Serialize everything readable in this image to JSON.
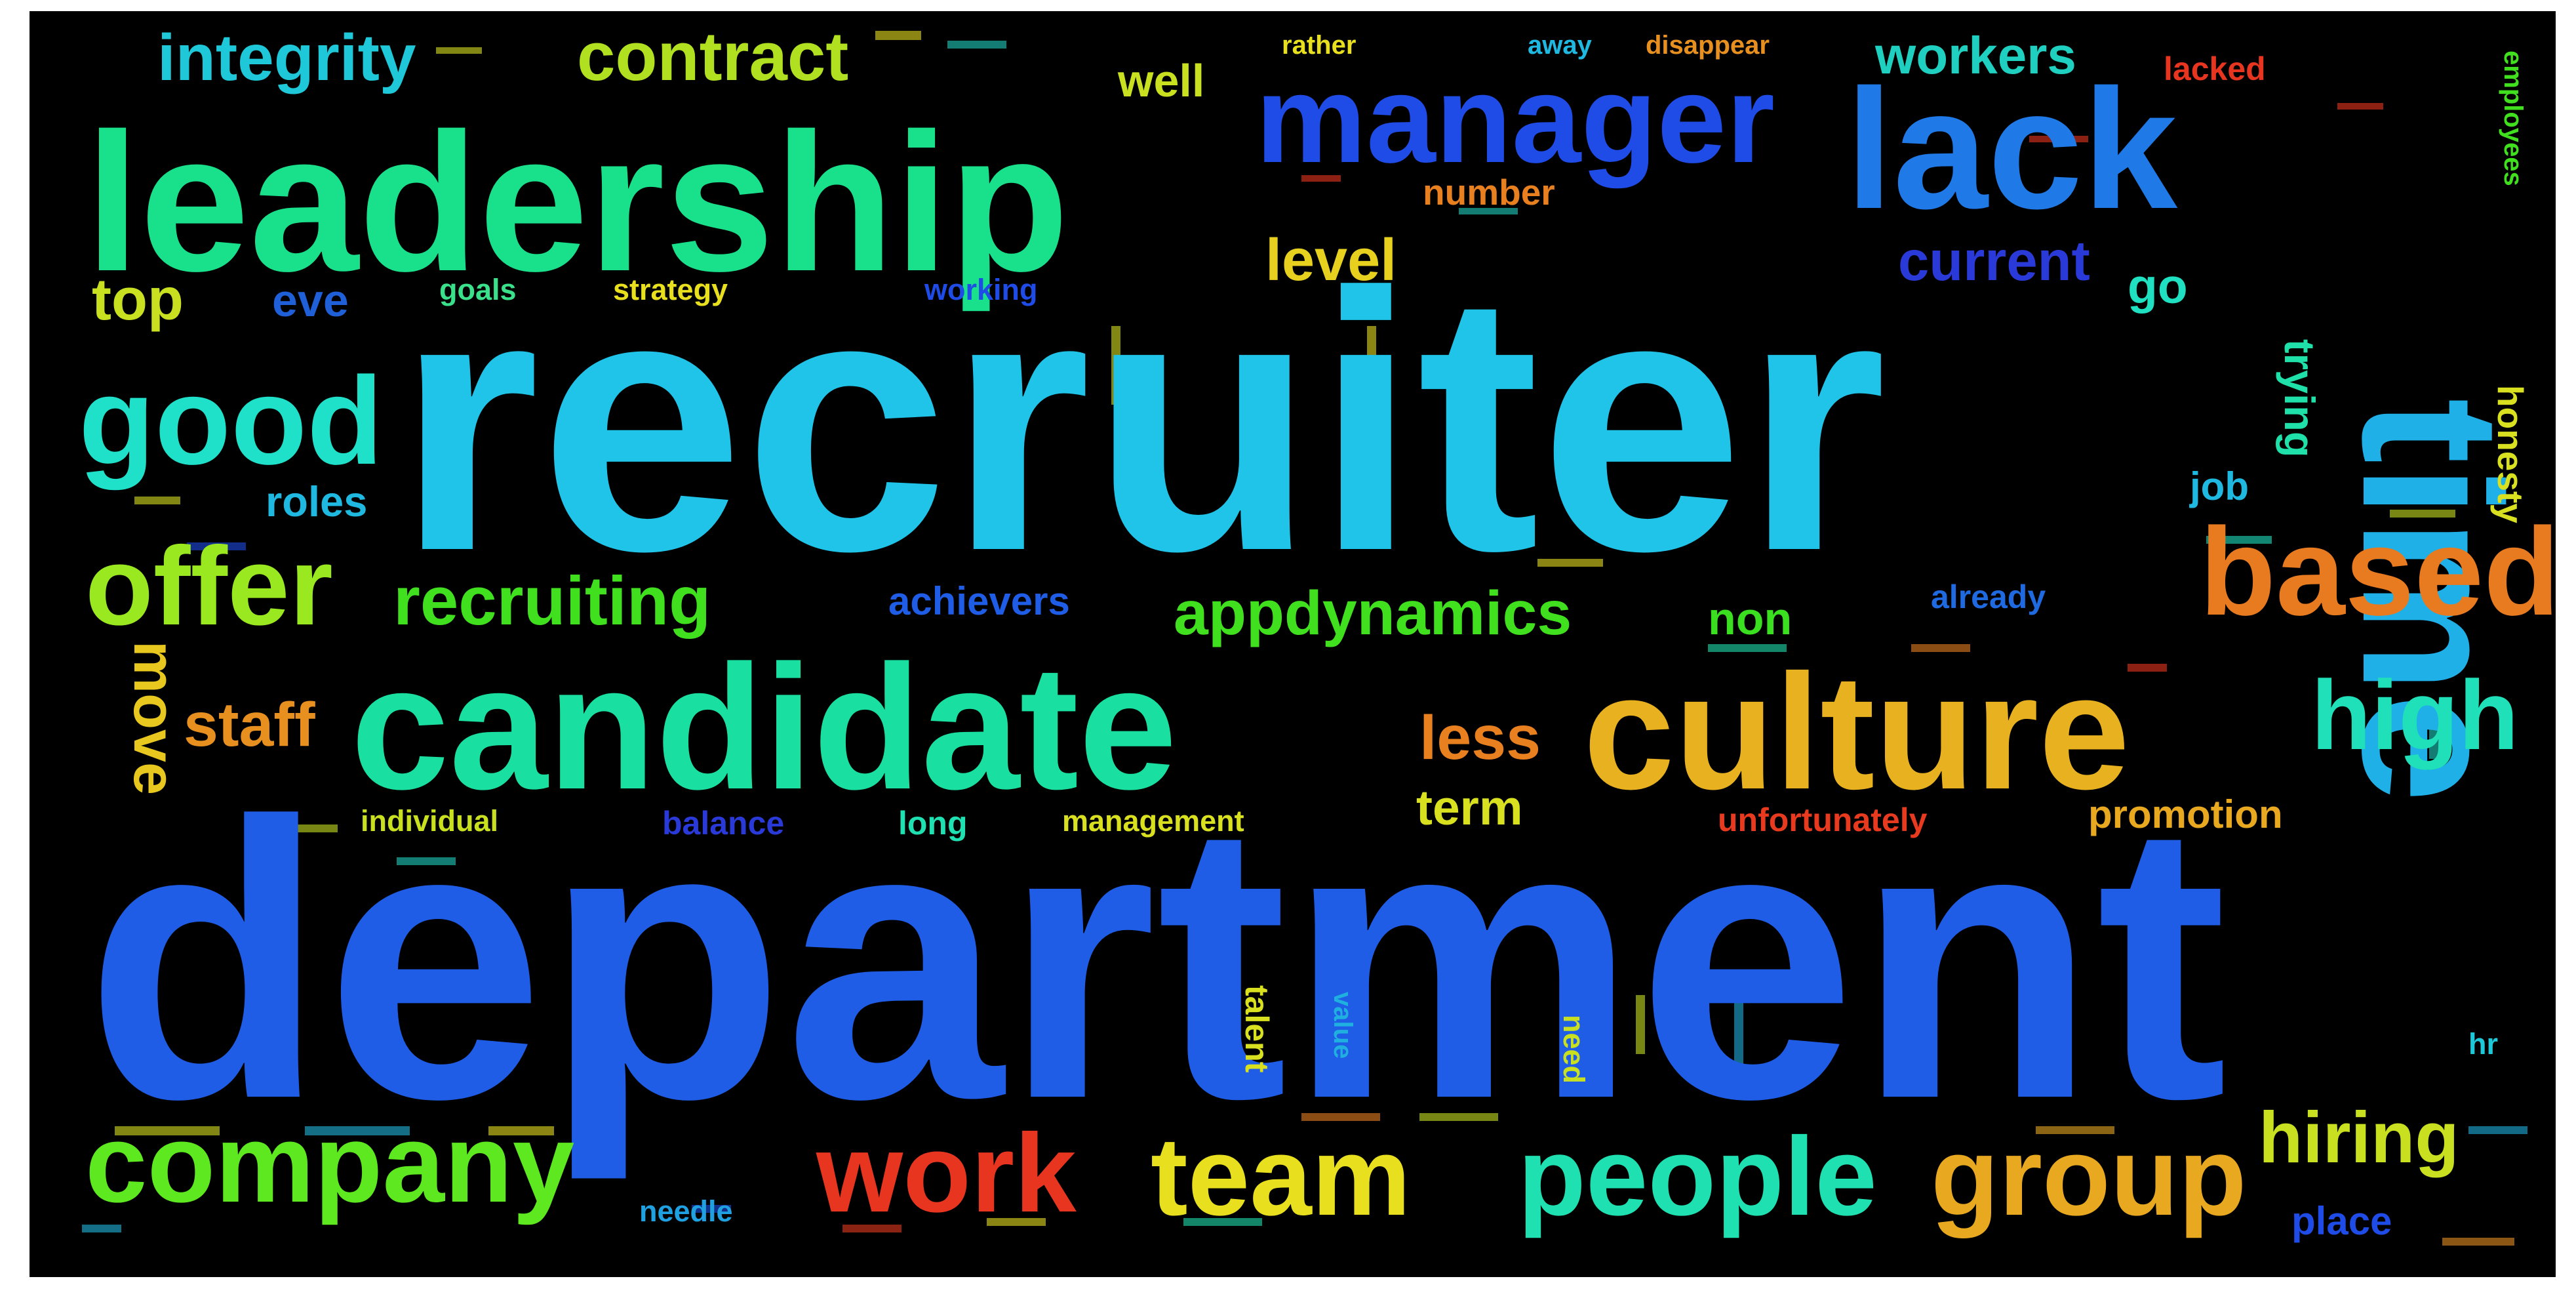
{
  "wordcloud": {
    "background": "#000000",
    "words": [
      {
        "text": "recruiter",
        "color": "#1fc4e8"
      },
      {
        "text": "department",
        "color": "#1f5de6"
      },
      {
        "text": "leadership",
        "color": "#19e08a"
      },
      {
        "text": "candidate",
        "color": "#19e0a0"
      },
      {
        "text": "culture",
        "color": "#e8b11f"
      },
      {
        "text": "lack",
        "color": "#1f7ae8"
      },
      {
        "text": "time",
        "color": "#1fb0e8"
      },
      {
        "text": "manager",
        "color": "#1f4be6"
      },
      {
        "text": "based",
        "color": "#e87a1f"
      },
      {
        "text": "good",
        "color": "#1fe0c8"
      },
      {
        "text": "offer",
        "color": "#9ae81f"
      },
      {
        "text": "company",
        "color": "#5de81f"
      },
      {
        "text": "work",
        "color": "#e8351f"
      },
      {
        "text": "team",
        "color": "#e8e01f"
      },
      {
        "text": "people",
        "color": "#1fe0b0"
      },
      {
        "text": "group",
        "color": "#e8a81f"
      },
      {
        "text": "high",
        "color": "#1fe0b8"
      },
      {
        "text": "hiring",
        "color": "#c8e01f"
      },
      {
        "text": "integrity",
        "color": "#1fc8d8"
      },
      {
        "text": "contract",
        "color": "#b0e01f"
      },
      {
        "text": "workers",
        "color": "#1fd0c0"
      },
      {
        "text": "recruiting",
        "color": "#40e01f"
      },
      {
        "text": "appdynamics",
        "color": "#40e01f"
      },
      {
        "text": "staff",
        "color": "#e8901f"
      },
      {
        "text": "move",
        "color": "#e8c81f"
      },
      {
        "text": "less",
        "color": "#e8801f"
      },
      {
        "text": "term",
        "color": "#d8e01f"
      },
      {
        "text": "level",
        "color": "#e8d01f"
      },
      {
        "text": "current",
        "color": "#2a3ad8"
      },
      {
        "text": "top",
        "color": "#c8e01f"
      },
      {
        "text": "eve",
        "color": "#1f60d8"
      },
      {
        "text": "roles",
        "color": "#1fb8e0"
      },
      {
        "text": "achievers",
        "color": "#1f5de6"
      },
      {
        "text": "non",
        "color": "#3ae01f"
      },
      {
        "text": "already",
        "color": "#1f6ae0"
      },
      {
        "text": "promotion",
        "color": "#e8a81f"
      },
      {
        "text": "unfortunately",
        "color": "#e83a1f"
      },
      {
        "text": "management",
        "color": "#d8e01f"
      },
      {
        "text": "individual",
        "color": "#c8e01f"
      },
      {
        "text": "balance",
        "color": "#2a3ad8"
      },
      {
        "text": "long",
        "color": "#1fe0b0"
      },
      {
        "text": "well",
        "color": "#c8e01f"
      },
      {
        "text": "number",
        "color": "#e8801f"
      },
      {
        "text": "go",
        "color": "#1fe0c0"
      },
      {
        "text": "trying",
        "color": "#1fe0a8"
      },
      {
        "text": "job",
        "color": "#1fb8e0"
      },
      {
        "text": "honesty",
        "color": "#d8e01f"
      },
      {
        "text": "employees",
        "color": "#40e01f"
      },
      {
        "text": "lacked",
        "color": "#e8351f"
      },
      {
        "text": "place",
        "color": "#1f4be6"
      },
      {
        "text": "needle",
        "color": "#1fa0e0"
      },
      {
        "text": "talent",
        "color": "#d8e01f"
      },
      {
        "text": "value",
        "color": "#1fb0e0"
      },
      {
        "text": "need",
        "color": "#c8e01f"
      },
      {
        "text": "hr",
        "color": "#1fc8d8"
      },
      {
        "text": "goals",
        "color": "#3ae08a"
      },
      {
        "text": "strategy",
        "color": "#e8e01f"
      },
      {
        "text": "working",
        "color": "#1f4be6"
      },
      {
        "text": "rather",
        "color": "#e8e01f"
      },
      {
        "text": "away",
        "color": "#1fb8e0"
      },
      {
        "text": "disappear",
        "color": "#e8901f"
      }
    ]
  }
}
